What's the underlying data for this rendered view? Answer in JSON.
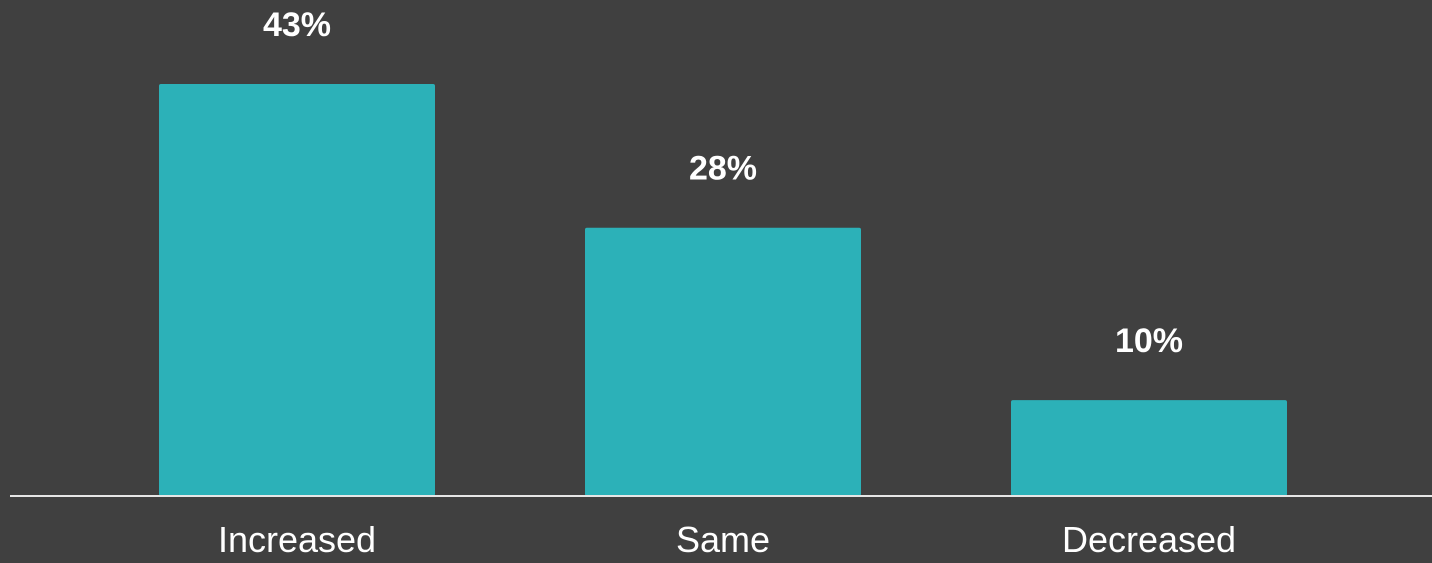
{
  "chart_data": {
    "type": "bar",
    "categories": [
      "Increased",
      "Same",
      "Decreased"
    ],
    "values": [
      43,
      28,
      10
    ],
    "value_labels": [
      "43%",
      "28%",
      "10%"
    ],
    "ylim": [
      0,
      43
    ],
    "grid": false,
    "legend": "none",
    "colors": {
      "bar": "#2cb1b8",
      "background": "#404040",
      "axis": "#e6e6e6",
      "text": "#ffffff"
    }
  }
}
